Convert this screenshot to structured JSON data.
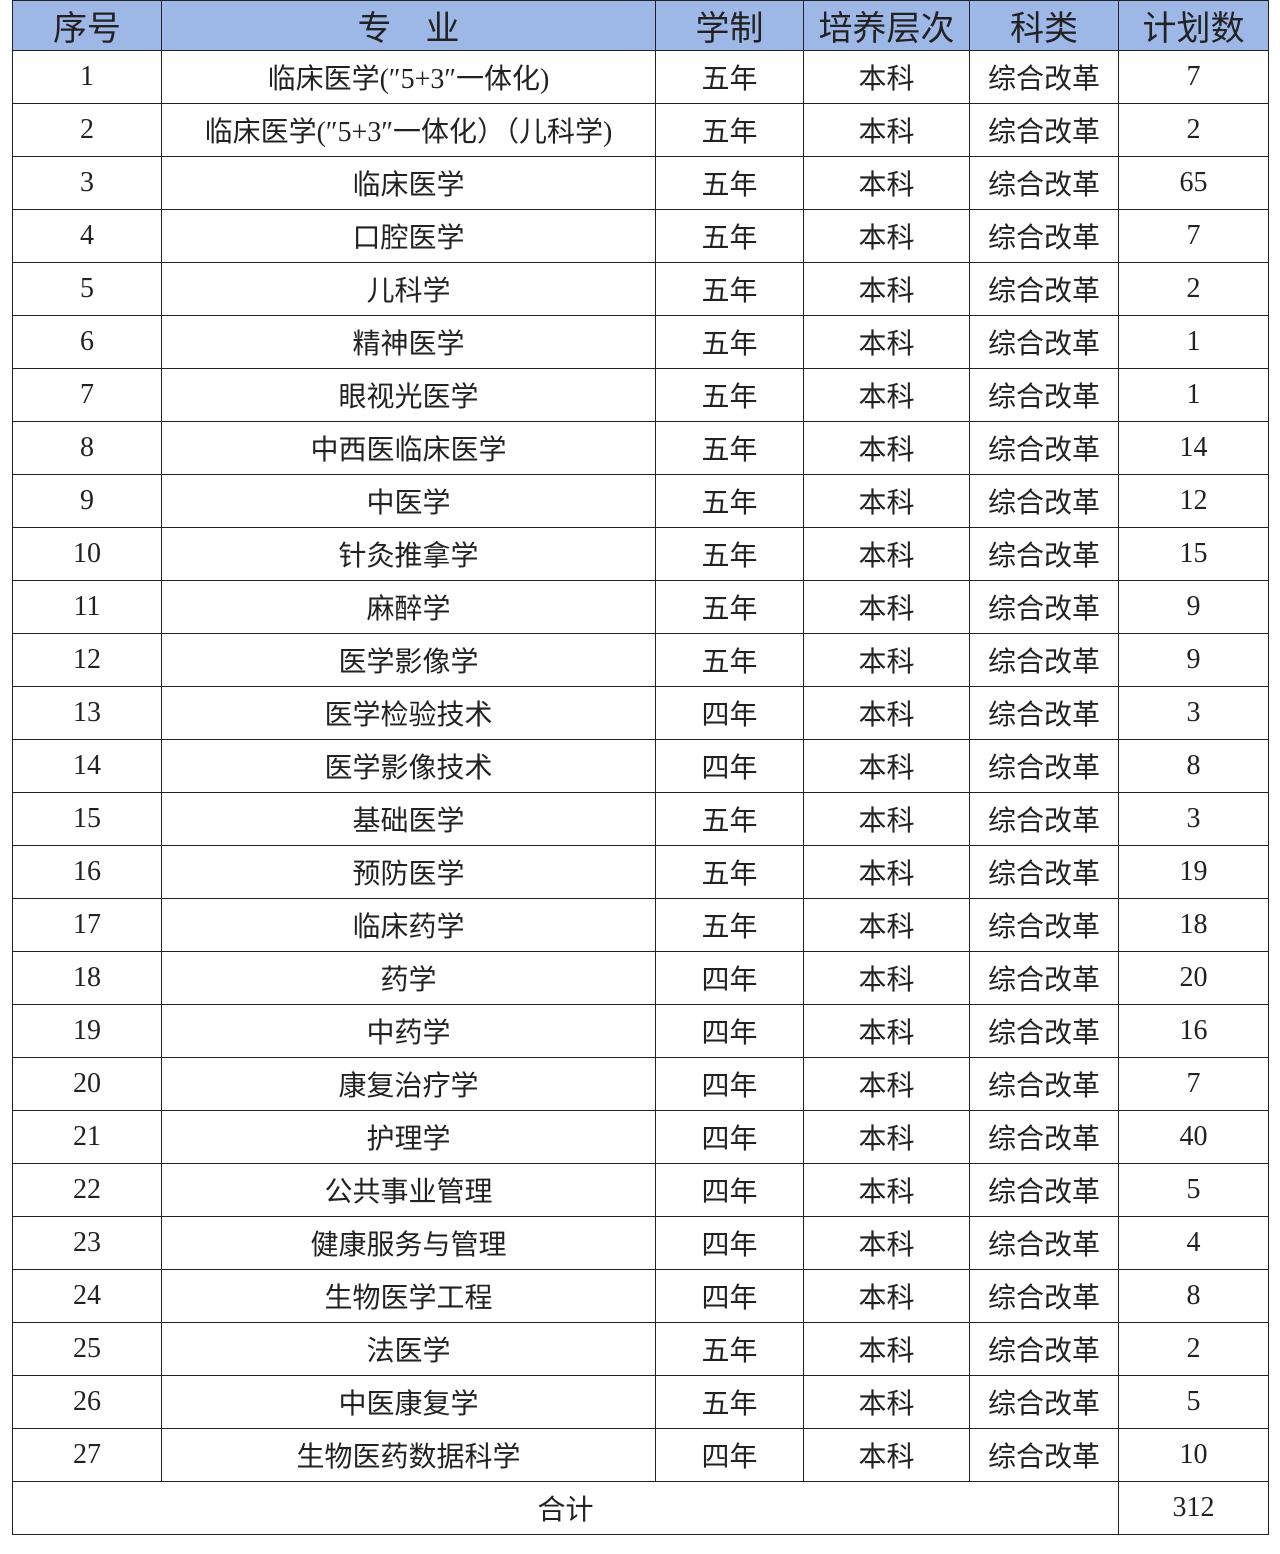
{
  "table": {
    "header": [
      "序号",
      "专　业",
      "学制",
      "培养层次",
      "科类",
      "计划数"
    ],
    "rows": [
      [
        "1",
        "临床医学(″5+3″一体化)",
        "五年",
        "本科",
        "综合改革",
        "7"
      ],
      [
        "2",
        "临床医学(″5+3″一体化）（儿科学)",
        "五年",
        "本科",
        "综合改革",
        "2"
      ],
      [
        "3",
        "临床医学",
        "五年",
        "本科",
        "综合改革",
        "65"
      ],
      [
        "4",
        "口腔医学",
        "五年",
        "本科",
        "综合改革",
        "7"
      ],
      [
        "5",
        "儿科学",
        "五年",
        "本科",
        "综合改革",
        "2"
      ],
      [
        "6",
        "精神医学",
        "五年",
        "本科",
        "综合改革",
        "1"
      ],
      [
        "7",
        "眼视光医学",
        "五年",
        "本科",
        "综合改革",
        "1"
      ],
      [
        "8",
        "中西医临床医学",
        "五年",
        "本科",
        "综合改革",
        "14"
      ],
      [
        "9",
        "中医学",
        "五年",
        "本科",
        "综合改革",
        "12"
      ],
      [
        "10",
        "针灸推拿学",
        "五年",
        "本科",
        "综合改革",
        "15"
      ],
      [
        "11",
        "麻醉学",
        "五年",
        "本科",
        "综合改革",
        "9"
      ],
      [
        "12",
        "医学影像学",
        "五年",
        "本科",
        "综合改革",
        "9"
      ],
      [
        "13",
        "医学检验技术",
        "四年",
        "本科",
        "综合改革",
        "3"
      ],
      [
        "14",
        "医学影像技术",
        "四年",
        "本科",
        "综合改革",
        "8"
      ],
      [
        "15",
        "基础医学",
        "五年",
        "本科",
        "综合改革",
        "3"
      ],
      [
        "16",
        "预防医学",
        "五年",
        "本科",
        "综合改革",
        "19"
      ],
      [
        "17",
        "临床药学",
        "五年",
        "本科",
        "综合改革",
        "18"
      ],
      [
        "18",
        "药学",
        "四年",
        "本科",
        "综合改革",
        "20"
      ],
      [
        "19",
        "中药学",
        "四年",
        "本科",
        "综合改革",
        "16"
      ],
      [
        "20",
        "康复治疗学",
        "四年",
        "本科",
        "综合改革",
        "7"
      ],
      [
        "21",
        "护理学",
        "四年",
        "本科",
        "综合改革",
        "40"
      ],
      [
        "22",
        "公共事业管理",
        "四年",
        "本科",
        "综合改革",
        "5"
      ],
      [
        "23",
        "健康服务与管理",
        "四年",
        "本科",
        "综合改革",
        "4"
      ],
      [
        "24",
        "生物医学工程",
        "四年",
        "本科",
        "综合改革",
        "8"
      ],
      [
        "25",
        "法医学",
        "五年",
        "本科",
        "综合改革",
        "2"
      ],
      [
        "26",
        "中医康复学",
        "五年",
        "本科",
        "综合改革",
        "5"
      ],
      [
        "27",
        "生物医药数据科学",
        "四年",
        "本科",
        "综合改革",
        "10"
      ]
    ],
    "total": {
      "label": "合计",
      "value": "312"
    }
  }
}
